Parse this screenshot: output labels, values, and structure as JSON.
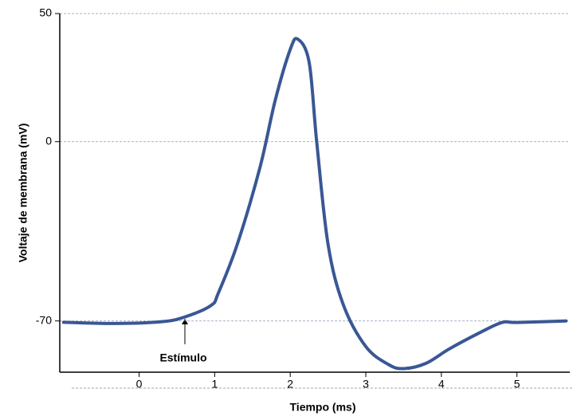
{
  "chart_data": {
    "type": "line",
    "x_label": "Tiempo (ms)",
    "y_label": "Voltaje de membrana (mV)",
    "annotation": "Estímulo",
    "x": [
      -1.0,
      -0.3,
      0.3,
      0.6,
      0.95,
      1.05,
      1.3,
      1.6,
      1.8,
      2.0,
      2.1,
      2.25,
      2.35,
      2.5,
      2.7,
      3.0,
      3.3,
      3.5,
      3.8,
      4.1,
      4.5,
      4.8,
      5.0,
      5.65
    ],
    "series": [
      {
        "color": "#3a5795",
        "values": [
          -70.5,
          -71,
          -70.3,
          -68.5,
          -64,
          -59,
          -40,
          -10,
          16,
          36,
          40,
          31,
          0,
          -40,
          -63.5,
          -80,
          -87,
          -88.6,
          -86.5,
          -81,
          -74.7,
          -70.6,
          -70.6,
          -70
        ]
      }
    ],
    "xlim": [
      -1.05,
      5.7
    ],
    "xticks": [
      0,
      1,
      2,
      3,
      4,
      5
    ],
    "ylim": [
      -90,
      50
    ],
    "yticks": [
      50,
      0,
      -70
    ],
    "grid": true
  }
}
